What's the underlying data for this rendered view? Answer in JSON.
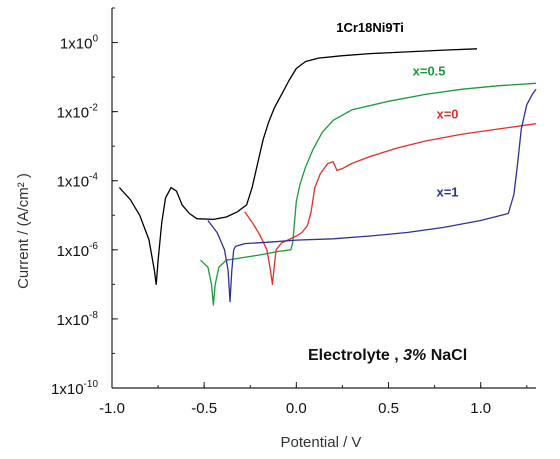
{
  "chart_data": {
    "type": "line",
    "title": "",
    "xlabel": "Potential / V",
    "ylabel": "Current / (A/cm² )",
    "xlim": [
      -1.0,
      1.3
    ],
    "ylim": [
      -10,
      1
    ],
    "y_scale": "log10",
    "grid": false,
    "legend": "inline labels",
    "x_ticks": [
      {
        "value": -1.0,
        "label": "-1.0"
      },
      {
        "value": -0.5,
        "label": "-0.5"
      },
      {
        "value": 0.0,
        "label": "0.0"
      },
      {
        "value": 0.5,
        "label": "0.5"
      },
      {
        "value": 1.0,
        "label": "1.0"
      }
    ],
    "y_ticks": [
      {
        "exp": 0,
        "base": "1x10",
        "power": "0"
      },
      {
        "exp": -2,
        "base": "1x10",
        "power": "-2"
      },
      {
        "exp": -4,
        "base": "1x10",
        "power": "-4"
      },
      {
        "exp": -6,
        "base": "1x10",
        "power": "-6"
      },
      {
        "exp": -8,
        "base": "1x10",
        "power": "-8"
      },
      {
        "exp": -10,
        "base": "1x10",
        "power": "-10"
      }
    ],
    "annotation": {
      "prefix": "Electrolyte ,  ",
      "italic": "3%",
      "suffix": " NaCl"
    },
    "series": [
      {
        "name": "1Cr18Ni9Ti",
        "color": "#000000",
        "label_at": [
          0.4,
          0.3
        ],
        "points": [
          [
            -0.96,
            -4.2
          ],
          [
            -0.9,
            -4.55
          ],
          [
            -0.85,
            -5.0
          ],
          [
            -0.8,
            -5.7
          ],
          [
            -0.77,
            -6.6
          ],
          [
            -0.76,
            -7.0
          ],
          [
            -0.75,
            -6.3
          ],
          [
            -0.73,
            -5.2
          ],
          [
            -0.71,
            -4.5
          ],
          [
            -0.68,
            -4.2
          ],
          [
            -0.65,
            -4.3
          ],
          [
            -0.62,
            -4.7
          ],
          [
            -0.58,
            -4.95
          ],
          [
            -0.54,
            -5.1
          ],
          [
            -0.45,
            -5.12
          ],
          [
            -0.38,
            -5.05
          ],
          [
            -0.32,
            -4.9
          ],
          [
            -0.27,
            -4.7
          ],
          [
            -0.24,
            -4.2
          ],
          [
            -0.21,
            -3.5
          ],
          [
            -0.18,
            -2.8
          ],
          [
            -0.15,
            -2.3
          ],
          [
            -0.12,
            -1.9
          ],
          [
            -0.08,
            -1.5
          ],
          [
            -0.04,
            -1.1
          ],
          [
            0.0,
            -0.75
          ],
          [
            0.05,
            -0.55
          ],
          [
            0.12,
            -0.45
          ],
          [
            0.25,
            -0.38
          ],
          [
            0.4,
            -0.32
          ],
          [
            0.6,
            -0.27
          ],
          [
            0.8,
            -0.22
          ],
          [
            0.98,
            -0.18
          ]
        ]
      },
      {
        "name": "x=0.5",
        "color": "#1a9a3c",
        "label_at": [
          0.72,
          -0.95
        ],
        "points": [
          [
            -0.52,
            -6.3
          ],
          [
            -0.48,
            -6.5
          ],
          [
            -0.46,
            -7.0
          ],
          [
            -0.45,
            -7.6
          ],
          [
            -0.44,
            -7.0
          ],
          [
            -0.42,
            -6.5
          ],
          [
            -0.38,
            -6.3
          ],
          [
            -0.32,
            -6.25
          ],
          [
            -0.2,
            -6.15
          ],
          [
            -0.1,
            -6.05
          ],
          [
            -0.03,
            -6.0
          ],
          [
            -0.02,
            -5.8
          ],
          [
            -0.01,
            -5.2
          ],
          [
            0.0,
            -4.6
          ],
          [
            0.02,
            -4.1
          ],
          [
            0.05,
            -3.6
          ],
          [
            0.09,
            -3.1
          ],
          [
            0.14,
            -2.6
          ],
          [
            0.2,
            -2.25
          ],
          [
            0.3,
            -1.95
          ],
          [
            0.5,
            -1.7
          ],
          [
            0.7,
            -1.5
          ],
          [
            0.9,
            -1.35
          ],
          [
            1.1,
            -1.25
          ],
          [
            1.3,
            -1.18
          ]
        ]
      },
      {
        "name": "x=0",
        "color": "#e0302a",
        "label_at": [
          0.82,
          -2.2
        ],
        "points": [
          [
            -0.28,
            -4.9
          ],
          [
            -0.24,
            -5.2
          ],
          [
            -0.2,
            -5.55
          ],
          [
            -0.16,
            -6.0
          ],
          [
            -0.14,
            -6.6
          ],
          [
            -0.13,
            -7.0
          ],
          [
            -0.12,
            -6.5
          ],
          [
            -0.11,
            -6.0
          ],
          [
            -0.08,
            -5.8
          ],
          [
            -0.04,
            -5.7
          ],
          [
            0.0,
            -5.6
          ],
          [
            0.03,
            -5.5
          ],
          [
            0.06,
            -5.3
          ],
          [
            0.08,
            -4.9
          ],
          [
            0.1,
            -4.2
          ],
          [
            0.13,
            -3.8
          ],
          [
            0.17,
            -3.5
          ],
          [
            0.2,
            -3.45
          ],
          [
            0.22,
            -3.7
          ],
          [
            0.25,
            -3.65
          ],
          [
            0.3,
            -3.5
          ],
          [
            0.4,
            -3.3
          ],
          [
            0.55,
            -3.05
          ],
          [
            0.7,
            -2.85
          ],
          [
            0.9,
            -2.65
          ],
          [
            1.1,
            -2.5
          ],
          [
            1.3,
            -2.35
          ]
        ]
      },
      {
        "name": "x=1",
        "color": "#2e3192",
        "label_at": [
          0.82,
          -4.45
        ],
        "points": [
          [
            -0.48,
            -5.15
          ],
          [
            -0.43,
            -5.5
          ],
          [
            -0.39,
            -6.0
          ],
          [
            -0.37,
            -6.6
          ],
          [
            -0.36,
            -7.5
          ],
          [
            -0.35,
            -6.6
          ],
          [
            -0.34,
            -6.0
          ],
          [
            -0.33,
            -5.9
          ],
          [
            -0.28,
            -5.82
          ],
          [
            -0.15,
            -5.78
          ],
          [
            0.0,
            -5.72
          ],
          [
            0.2,
            -5.68
          ],
          [
            0.4,
            -5.6
          ],
          [
            0.6,
            -5.5
          ],
          [
            0.8,
            -5.35
          ],
          [
            1.0,
            -5.15
          ],
          [
            1.15,
            -4.95
          ],
          [
            1.18,
            -4.4
          ],
          [
            1.2,
            -3.5
          ],
          [
            1.22,
            -2.5
          ],
          [
            1.25,
            -1.8
          ],
          [
            1.28,
            -1.5
          ],
          [
            1.3,
            -1.35
          ]
        ]
      }
    ]
  }
}
